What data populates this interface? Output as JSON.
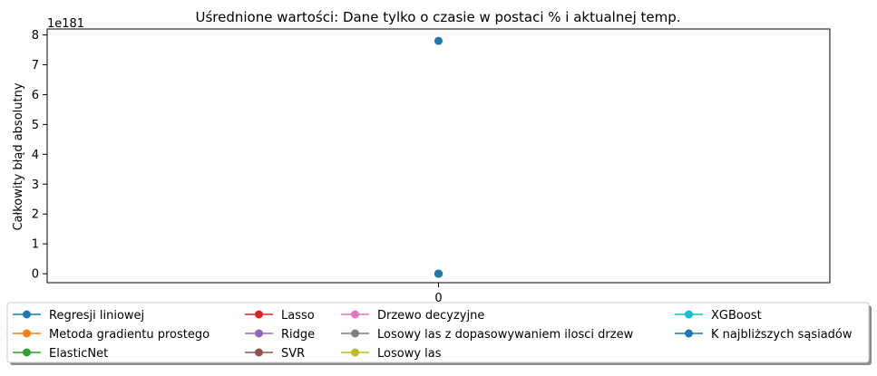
{
  "chart_data": {
    "type": "line",
    "title": "Uśrednione wartości: Dane tylko o czasie w postaci % i aktualnej temp.",
    "xlabel": "",
    "ylabel": "Całkowity błąd absolutny",
    "y_offset_label": "1e181",
    "x": [
      0
    ],
    "xticks": [
      "0"
    ],
    "yticks": [
      "0",
      "1",
      "2",
      "3",
      "4",
      "5",
      "6",
      "7",
      "8"
    ],
    "ylim": [
      -0.3,
      8.2
    ],
    "xlim": [
      -1,
      1
    ],
    "grid": false,
    "legend_position": "below",
    "series": [
      {
        "name": "Regresji liniowej",
        "color": "#1f77b4",
        "values": [
          7.8
        ]
      },
      {
        "name": "Metoda gradientu prostego",
        "color": "#ff7f0e",
        "values": [
          0
        ]
      },
      {
        "name": "ElasticNet",
        "color": "#2ca02c",
        "values": [
          0
        ]
      },
      {
        "name": "Lasso",
        "color": "#d62728",
        "values": [
          0
        ]
      },
      {
        "name": "Ridge",
        "color": "#9467bd",
        "values": [
          0
        ]
      },
      {
        "name": "SVR",
        "color": "#8c564b",
        "values": [
          0
        ]
      },
      {
        "name": "Drzewo decyzyjne",
        "color": "#e377c2",
        "values": [
          0
        ]
      },
      {
        "name": "Losowy las z dopasowywaniem ilosci drzew",
        "color": "#7f7f7f",
        "values": [
          0
        ]
      },
      {
        "name": "Losowy las",
        "color": "#bcbd22",
        "values": [
          0
        ]
      },
      {
        "name": "XGBoost",
        "color": "#17becf",
        "values": [
          0
        ]
      },
      {
        "name": "K najbliższych sąsiadów",
        "color": "#1f77b4",
        "values": [
          0
        ]
      }
    ]
  }
}
